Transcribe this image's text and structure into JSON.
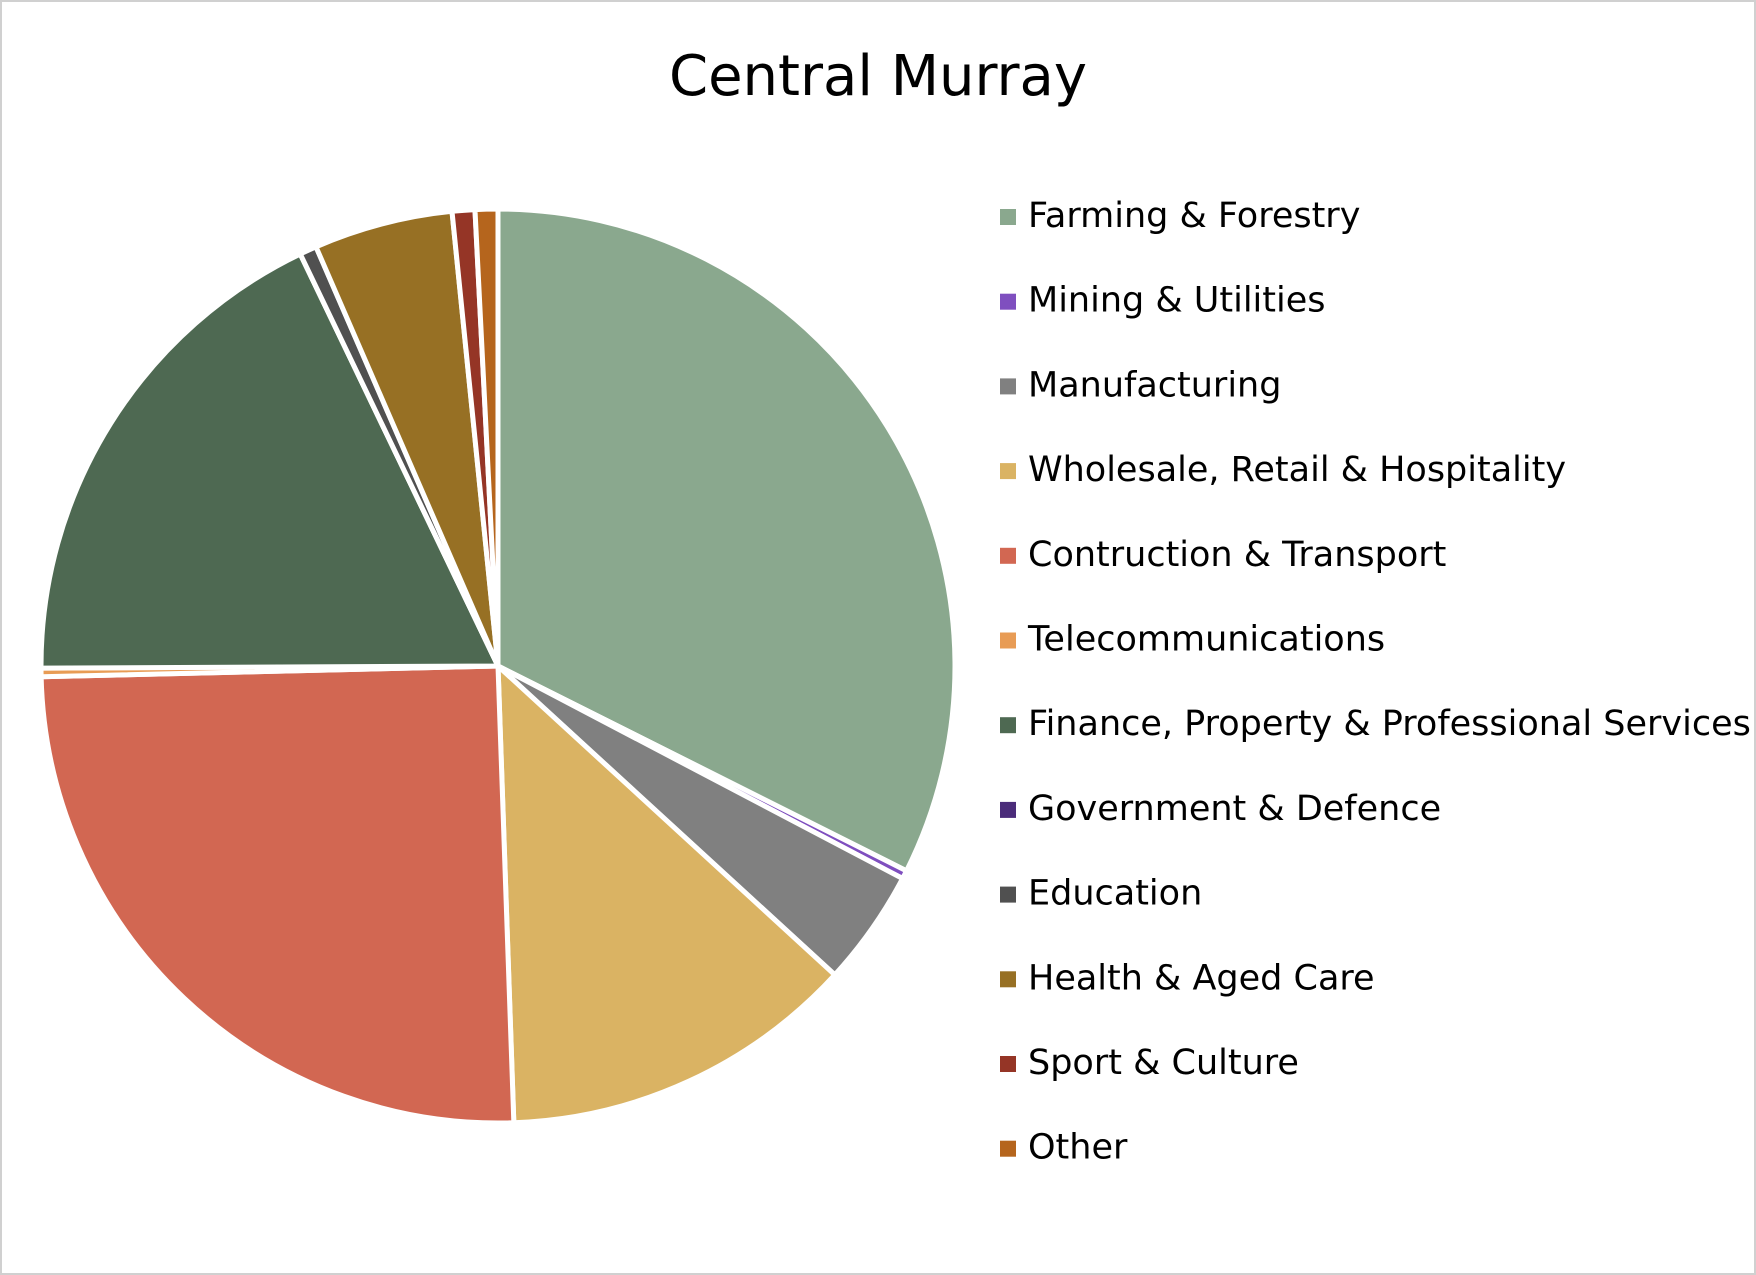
{
  "chart_data": {
    "type": "pie",
    "title": "Central Murray",
    "categories": [
      "Farming & Forestry",
      "Mining & Utilities",
      "Manufacturing",
      "Wholesale, Retail & Hospitality",
      "Contruction & Transport",
      "Telecommunications",
      "Finance, Property & Professional Services",
      "Government & Defence",
      "Education",
      "Health & Aged Care",
      "Sport & Culture",
      "Other"
    ],
    "values": [
      32.3,
      0.3,
      4.1,
      12.6,
      25.1,
      0.3,
      17.9,
      0,
      0.6,
      4.9,
      0.8,
      0.8
    ],
    "colors": [
      "#8aa88e",
      "#7f4fbf",
      "#808080",
      "#dab363",
      "#d26752",
      "#e89c55",
      "#4e6952",
      "#4b2c7a",
      "#505050",
      "#977024",
      "#953526",
      "#b5651d"
    ],
    "legend": "right"
  }
}
